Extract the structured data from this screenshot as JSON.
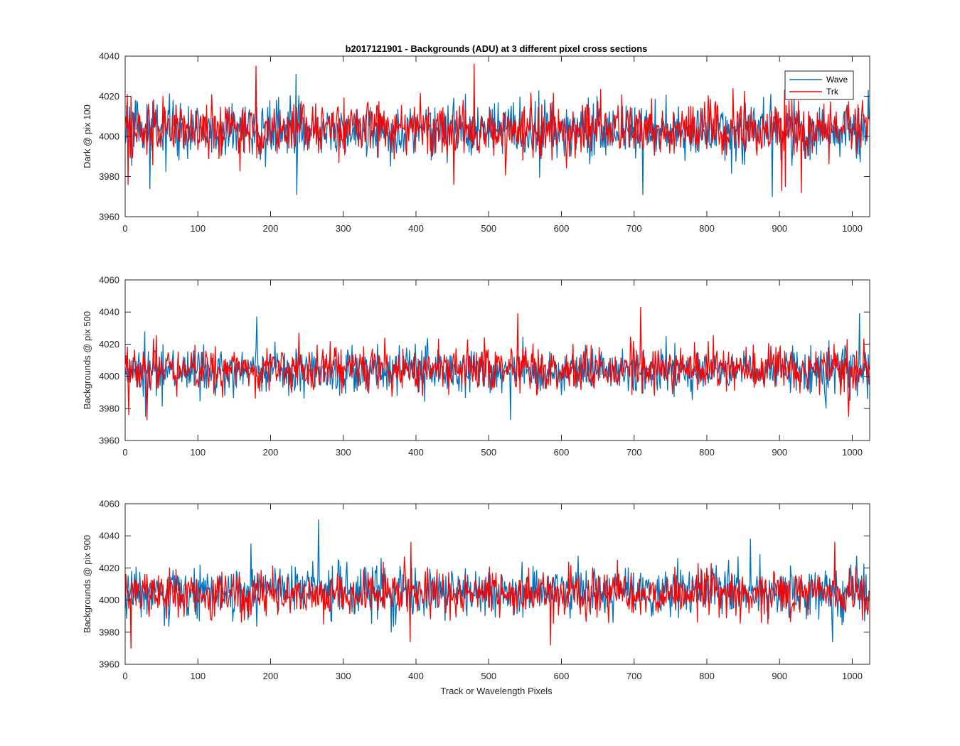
{
  "figure": {
    "title": "b2017121901 - Backgrounds (ADU) at 3 different pixel cross sections",
    "xlabel": "Track or Wavelength Pixels"
  },
  "chart_data": [
    {
      "type": "line",
      "title": "b2017121901 - Backgrounds (ADU) at 3 different pixel cross sections",
      "xlabel": "",
      "ylabel": "Dark @ pix 100",
      "xlim": [
        0,
        1024
      ],
      "ylim": [
        3960,
        4040
      ],
      "xticks": [
        0,
        100,
        200,
        300,
        400,
        500,
        600,
        700,
        800,
        900,
        1000
      ],
      "yticks": [
        3960,
        3980,
        4000,
        4020,
        4040
      ],
      "legend": {
        "location": "top-right",
        "entries": [
          "Wave",
          "Trk"
        ]
      },
      "series": [
        {
          "name": "Wave",
          "color": "#0072BD",
          "n_points": 1024,
          "mean": 4003,
          "spread": 7,
          "extremes": [
            [
              236,
              3971
            ],
            [
              235,
              4031
            ],
            [
              890,
              3970
            ],
            [
              712,
              3971
            ],
            [
              1022,
              4023
            ],
            [
              34,
              3974
            ]
          ]
        },
        {
          "name": "Trk",
          "color": "#FF0000",
          "n_points": 1024,
          "mean": 4004,
          "spread": 7,
          "extremes": [
            [
              180,
              4035
            ],
            [
              480,
              4036
            ],
            [
              452,
              3976
            ],
            [
              4,
              3976
            ],
            [
              930,
              3972
            ],
            [
              903,
              3973
            ]
          ]
        }
      ]
    },
    {
      "type": "line",
      "title": "",
      "xlabel": "",
      "ylabel": "Backgrounds @ pix 500",
      "xlim": [
        0,
        1024
      ],
      "ylim": [
        3960,
        4060
      ],
      "xticks": [
        0,
        100,
        200,
        300,
        400,
        500,
        600,
        700,
        800,
        900,
        1000
      ],
      "yticks": [
        3960,
        3980,
        4000,
        4020,
        4040,
        4060
      ],
      "series": [
        {
          "name": "Wave",
          "color": "#0072BD",
          "n_points": 1024,
          "mean": 4003,
          "spread": 7,
          "extremes": [
            [
              181,
              4037
            ],
            [
              530,
              3973
            ],
            [
              1010,
              4039
            ],
            [
              28,
              3975
            ]
          ]
        },
        {
          "name": "Trk",
          "color": "#FF0000",
          "n_points": 1024,
          "mean": 4005,
          "spread": 7,
          "extremes": [
            [
              709,
              4043
            ],
            [
              30,
              3973
            ],
            [
              995,
              3975
            ],
            [
              540,
              4039
            ],
            [
              5,
              3976
            ]
          ]
        }
      ]
    },
    {
      "type": "line",
      "title": "",
      "xlabel": "Track or Wavelength Pixels",
      "ylabel": "Backgrounds @ pix 900",
      "xlim": [
        0,
        1024
      ],
      "ylim": [
        3960,
        4060
      ],
      "xticks": [
        0,
        100,
        200,
        300,
        400,
        500,
        600,
        700,
        800,
        900,
        1000
      ],
      "yticks": [
        3960,
        3980,
        4000,
        4020,
        4040,
        4060
      ],
      "series": [
        {
          "name": "Wave",
          "color": "#0072BD",
          "n_points": 1024,
          "mean": 4005,
          "spread": 8,
          "extremes": [
            [
              266,
              4050
            ],
            [
              860,
              4038
            ],
            [
              973,
              3974
            ],
            [
              173,
              4035
            ]
          ]
        },
        {
          "name": "Trk",
          "color": "#FF0000",
          "n_points": 1024,
          "mean": 4004,
          "spread": 7,
          "extremes": [
            [
              8,
              3970
            ],
            [
              585,
              3972
            ],
            [
              392,
              3974
            ],
            [
              976,
              4036
            ],
            [
              393,
              4036
            ]
          ]
        }
      ]
    }
  ]
}
